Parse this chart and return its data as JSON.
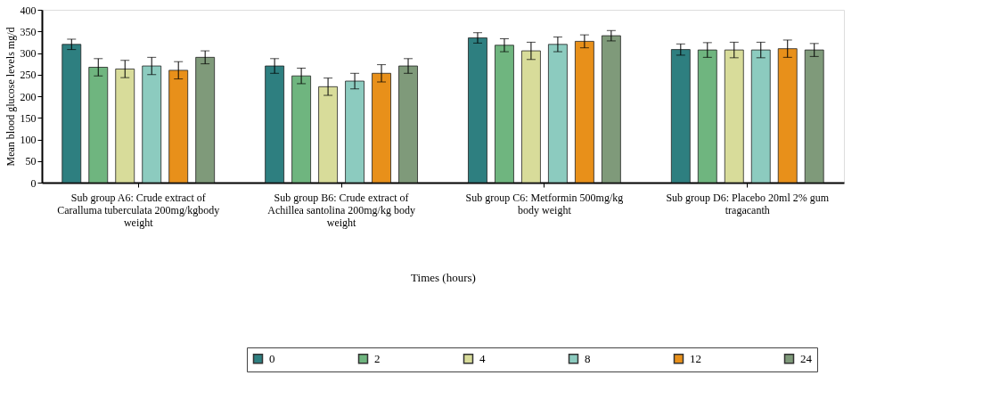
{
  "chart_data": {
    "type": "bar",
    "xlabel": "Times (hours)",
    "ylabel": "Mean blood glucose levels mg/d",
    "categories": [
      "Sub group A6: Crude extract of Caralluma tuberculata 200mg/kgbody weight",
      "Sub group B6: Crude extract of Achillea santolina 200mg/kg body weight",
      "Sub group C6: Metformin 500mg/kg body weight",
      "Sub group D6: Placebo 20ml 2% gum tragacanth"
    ],
    "series": [
      {
        "name": "0",
        "color": "#2e7f80",
        "values": [
          320,
          270,
          335,
          308
        ],
        "errors": [
          12,
          17,
          12,
          13
        ]
      },
      {
        "name": "2",
        "color": "#6fb57f",
        "values": [
          267,
          247,
          318,
          307
        ],
        "errors": [
          20,
          18,
          15,
          17
        ]
      },
      {
        "name": "4",
        "color": "#d8dc9a",
        "values": [
          263,
          222,
          305,
          307
        ],
        "errors": [
          20,
          20,
          20,
          18
        ]
      },
      {
        "name": "8",
        "color": "#8ccbbf",
        "values": [
          270,
          235,
          320,
          307
        ],
        "errors": [
          20,
          18,
          17,
          18
        ]
      },
      {
        "name": "12",
        "color": "#e8901a",
        "values": [
          260,
          253,
          327,
          310
        ],
        "errors": [
          20,
          20,
          15,
          20
        ]
      },
      {
        "name": "24",
        "color": "#7f9a7a",
        "values": [
          290,
          270,
          340,
          307
        ],
        "errors": [
          15,
          17,
          12,
          15
        ]
      }
    ],
    "ylim": [
      0,
      400
    ],
    "yticks": [
      0,
      50,
      100,
      150,
      200,
      250,
      300,
      350,
      400
    ],
    "grid": false,
    "legend": "bottom"
  }
}
